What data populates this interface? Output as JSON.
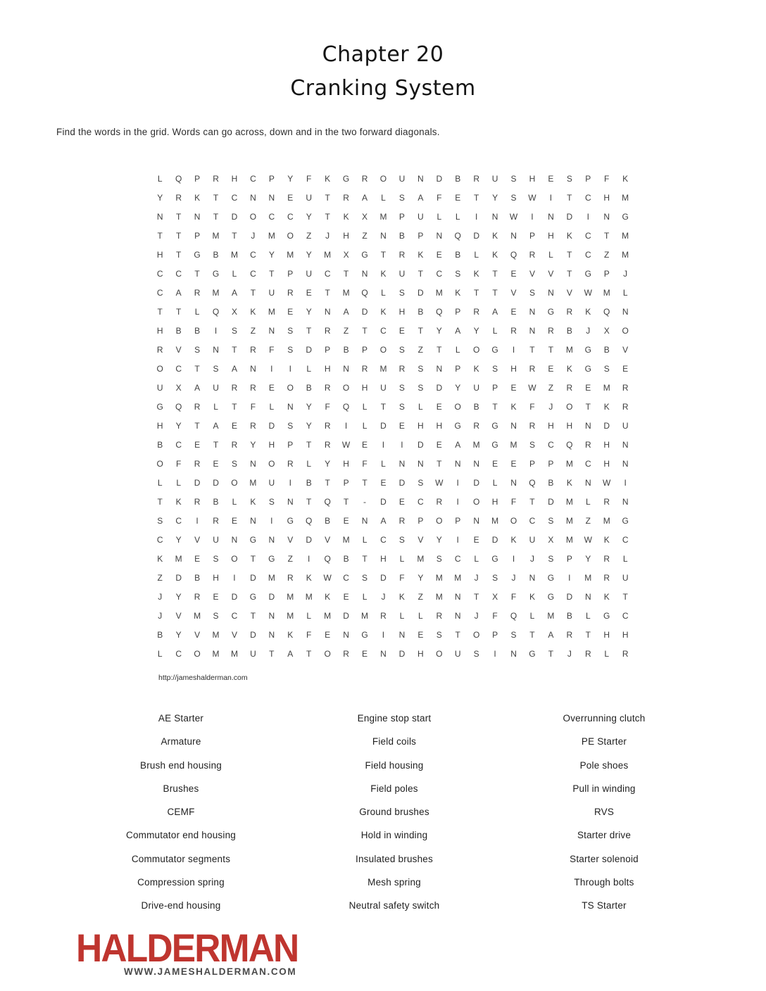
{
  "page": {
    "title_line1": "Chapter 20",
    "title_line2": "Cranking System",
    "instructions": "Find the words in the grid. Words can go across, down and in the two forward diagonals.",
    "source_url": "http://jameshalderman.com"
  },
  "grid": {
    "rows": [
      "LQPRHCPYFKGROUNDBRUSHESPFK",
      "YRKTCNNEUTRALSAFETYSWITCHM",
      "NTNTDOCCYTKXMPULLINWINDING",
      "TTPMTJMOZJHZNBPNQDKNPHKCTM",
      "HTGBMCYMYMXGTRKEBLKQRLTCZM",
      "CCTGLCTPUCTNKUTCSKTEVVTGPJ",
      "CARMATURETMQLSDMKTTVSNVWML",
      "TTLQXKMEYNADKHBQPRAENGRKQN",
      "HBBISZNSTRZTCETYAYLRNRBJXO",
      "RVSNTRFSDPBPOSZTLOGITTMGBV",
      "OCTSANIILHNRMRSNPKSHREKGSE",
      "UXAURREOBROHUSSDYUPEWZREMR",
      "GQRLTFLNYFQLTSLEOBTKFJOTKR",
      "HYTAERDSYRILDEHHGRGNRHHNDU",
      "BCETRYHPTRWEIIDEAMGMSCQRHN",
      "OFRESNORLYHFLNNTNNEEPPMCHN",
      "LLDDOMUIBTPTEDSWIDLNQBKNWI",
      "TKRBLKSNTQT-DECRIOHFTDMLRN",
      "SCIRENIGQBENARPOPNMOCSMZMG",
      "CYVUNGNVDVMLCSVYIEDKUXMWKC",
      "KMESOTGZIQBTHLMSCLGIJSPYRL",
      "ZDBHIDMRKWCSDFYMMJSJNGIMRU",
      "JYREDGDMMKELJKZMNTXFKGDNKT",
      "JVMSCTNMLMDMRLLRNJFQLMBLGC",
      "BYVMVDNKFENGINESTOPSTARTHH",
      "LCOMMUTATORENDHOUSINGTJRLR"
    ]
  },
  "word_list": {
    "columns": [
      [
        "AE Starter",
        "Armature",
        "Brush end housing",
        "Brushes",
        "CEMF",
        "Commutator end housing",
        "Commutator segments",
        "Compression spring",
        "Drive-end housing"
      ],
      [
        "Engine stop start",
        "Field coils",
        "Field housing",
        "Field poles",
        "Ground brushes",
        "Hold in winding",
        "Insulated brushes",
        "Mesh spring",
        "Neutral safety switch"
      ],
      [
        "Overrunning clutch",
        "PE Starter",
        "Pole shoes",
        "Pull in winding",
        "RVS",
        "Starter drive",
        "Starter solenoid",
        "Through bolts",
        "TS Starter"
      ]
    ]
  },
  "logo": {
    "text": "HALDERMAN",
    "subtext": "WWW.JAMESHALDERMAN.COM",
    "color": "#bf352f",
    "subtext_color": "#4a4a4a"
  }
}
